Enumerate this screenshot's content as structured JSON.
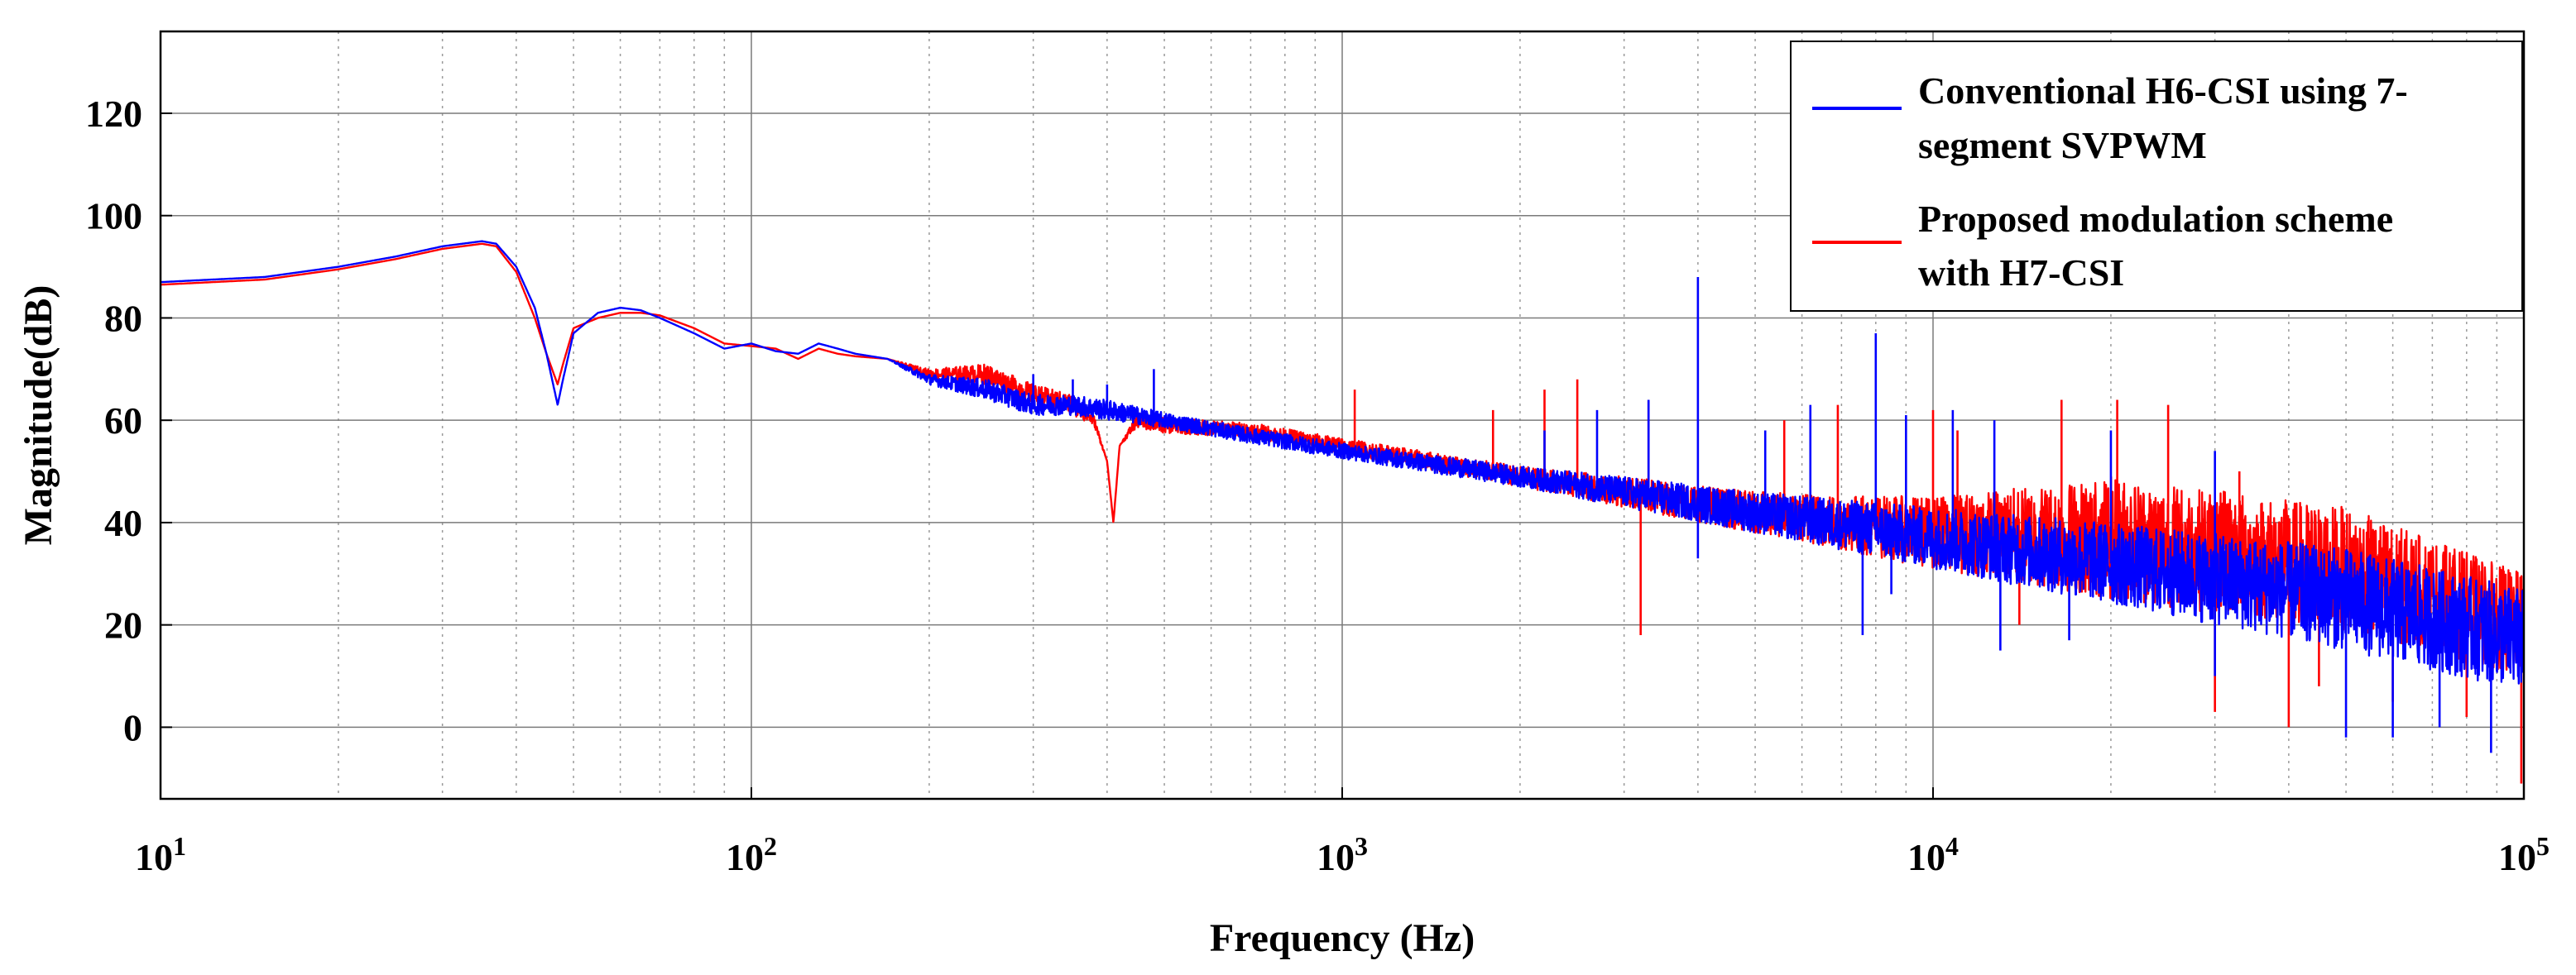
{
  "chart_data": {
    "type": "line",
    "title": "",
    "xlabel": "Frequency (Hz)",
    "ylabel": "Magnitude(dB)",
    "xscale": "log",
    "xlim": [
      10,
      100000
    ],
    "ylim": [
      -14,
      136
    ],
    "grid": true,
    "x_ticks": [
      {
        "value": 10,
        "base": "10",
        "exp": "1"
      },
      {
        "value": 100,
        "base": "10",
        "exp": "2"
      },
      {
        "value": 1000,
        "base": "10",
        "exp": "3"
      },
      {
        "value": 10000,
        "base": "10",
        "exp": "4"
      },
      {
        "value": 100000,
        "base": "10",
        "exp": "5"
      }
    ],
    "y_ticks": [
      "0",
      "20",
      "40",
      "60",
      "80",
      "100",
      "120"
    ],
    "legend": {
      "position": "top-right",
      "entries": [
        {
          "line1": "Conventional H6-CSI using 7-",
          "line2": "segment  SVPWM",
          "color": "#0000ff"
        },
        {
          "line1": "Proposed modulation scheme",
          "line2": "with H7-CSI",
          "color": "#ff0000"
        }
      ]
    },
    "series": [
      {
        "name": "Conventional H6-CSI using 7-segment SVPWM",
        "color": "#0000ff",
        "x": [
          10,
          15,
          20,
          25,
          30,
          35,
          37,
          40,
          43,
          45,
          47,
          48,
          50,
          55,
          60,
          65,
          70,
          80,
          90,
          100,
          110,
          120,
          130,
          140,
          150,
          170,
          200,
          250,
          300,
          350,
          400,
          500,
          700,
          1000,
          2000,
          3000,
          5000,
          10000,
          20000,
          50000,
          100000
        ],
        "values": [
          87,
          88,
          90,
          92,
          94,
          95,
          94.5,
          90,
          82,
          73,
          63,
          68,
          77,
          81,
          82,
          81.5,
          80,
          77,
          74,
          75,
          73.5,
          73,
          75,
          74,
          73,
          72,
          68,
          66,
          63,
          63,
          62,
          60,
          57,
          54,
          49,
          46,
          42,
          37,
          32,
          25,
          17
        ],
        "noise": [
          0,
          0,
          0,
          0,
          0,
          0,
          0,
          0,
          0,
          0,
          0,
          0,
          0,
          0,
          0,
          0,
          0,
          0,
          0,
          0,
          0,
          0,
          0,
          0,
          0,
          0,
          1,
          2,
          2,
          2,
          2,
          1.5,
          1.5,
          1.5,
          2,
          3,
          4,
          6,
          8,
          10,
          10
        ],
        "spikes": [
          {
            "x": 300,
            "y": 69
          },
          {
            "x": 350,
            "y": 68
          },
          {
            "x": 400,
            "y": 67
          },
          {
            "x": 480,
            "y": 70
          },
          {
            "x": 2200,
            "y": 58
          },
          {
            "x": 2700,
            "y": 62
          },
          {
            "x": 3300,
            "y": 64
          },
          {
            "x": 4000,
            "y": 88
          },
          {
            "x": 5200,
            "y": 58
          },
          {
            "x": 6200,
            "y": 63
          },
          {
            "x": 8000,
            "y": 77
          },
          {
            "x": 9000,
            "y": 61
          },
          {
            "x": 10800,
            "y": 62
          },
          {
            "x": 12700,
            "y": 60
          },
          {
            "x": 20000,
            "y": 58
          },
          {
            "x": 30000,
            "y": 54
          },
          {
            "x": 4000,
            "y": 33
          },
          {
            "x": 7600,
            "y": 18
          },
          {
            "x": 8500,
            "y": 26
          },
          {
            "x": 13000,
            "y": 15
          },
          {
            "x": 17000,
            "y": 17
          },
          {
            "x": 30000,
            "y": 10
          },
          {
            "x": 50000,
            "y": -2
          },
          {
            "x": 60000,
            "y": -2
          },
          {
            "x": 72000,
            "y": 0
          },
          {
            "x": 88000,
            "y": -5
          }
        ]
      },
      {
        "name": "Proposed modulation scheme with H7-CSI",
        "color": "#ff0000",
        "x": [
          10,
          15,
          20,
          25,
          30,
          35,
          37,
          40,
          43,
          45,
          47,
          48,
          50,
          55,
          60,
          65,
          70,
          80,
          90,
          100,
          110,
          120,
          130,
          140,
          150,
          170,
          200,
          250,
          300,
          350,
          380,
          400,
          410,
          420,
          450,
          500,
          700,
          1000,
          2000,
          3000,
          5000,
          10000,
          20000,
          50000,
          100000
        ],
        "values": [
          86.5,
          87.5,
          89.5,
          91.5,
          93.5,
          94.5,
          94,
          89,
          80,
          73,
          67,
          71,
          78,
          80,
          81,
          81,
          80.5,
          78,
          75,
          74.5,
          74,
          72,
          74,
          73,
          72.5,
          72,
          69,
          69,
          65,
          63,
          60,
          52,
          40,
          55,
          60,
          59,
          58,
          55,
          49,
          46,
          42,
          38,
          37,
          31,
          20
        ],
        "noise": [
          0,
          0,
          0,
          0,
          0,
          0,
          0,
          0,
          0,
          0,
          0,
          0,
          0,
          0,
          0,
          0,
          0,
          0,
          0,
          0,
          0,
          0,
          0,
          0,
          0,
          0,
          1,
          2,
          2,
          2,
          1,
          0,
          0,
          0,
          1.5,
          1.5,
          1.5,
          1.5,
          2,
          3,
          4,
          7,
          12,
          12,
          10
        ],
        "spikes": [
          {
            "x": 1050,
            "y": 66
          },
          {
            "x": 1800,
            "y": 62
          },
          {
            "x": 2200,
            "y": 66
          },
          {
            "x": 2500,
            "y": 68
          },
          {
            "x": 3300,
            "y": 64
          },
          {
            "x": 5600,
            "y": 60
          },
          {
            "x": 6900,
            "y": 63
          },
          {
            "x": 10000,
            "y": 62
          },
          {
            "x": 11000,
            "y": 58
          },
          {
            "x": 16500,
            "y": 64
          },
          {
            "x": 20500,
            "y": 64
          },
          {
            "x": 25000,
            "y": 63
          },
          {
            "x": 33000,
            "y": 50
          },
          {
            "x": 3200,
            "y": 18
          },
          {
            "x": 40000,
            "y": 0
          },
          {
            "x": 30000,
            "y": 3
          },
          {
            "x": 60000,
            "y": 5
          },
          {
            "x": 80000,
            "y": 2
          },
          {
            "x": 99000,
            "y": -11
          },
          {
            "x": 14000,
            "y": 20
          },
          {
            "x": 45000,
            "y": 8
          }
        ]
      }
    ]
  }
}
